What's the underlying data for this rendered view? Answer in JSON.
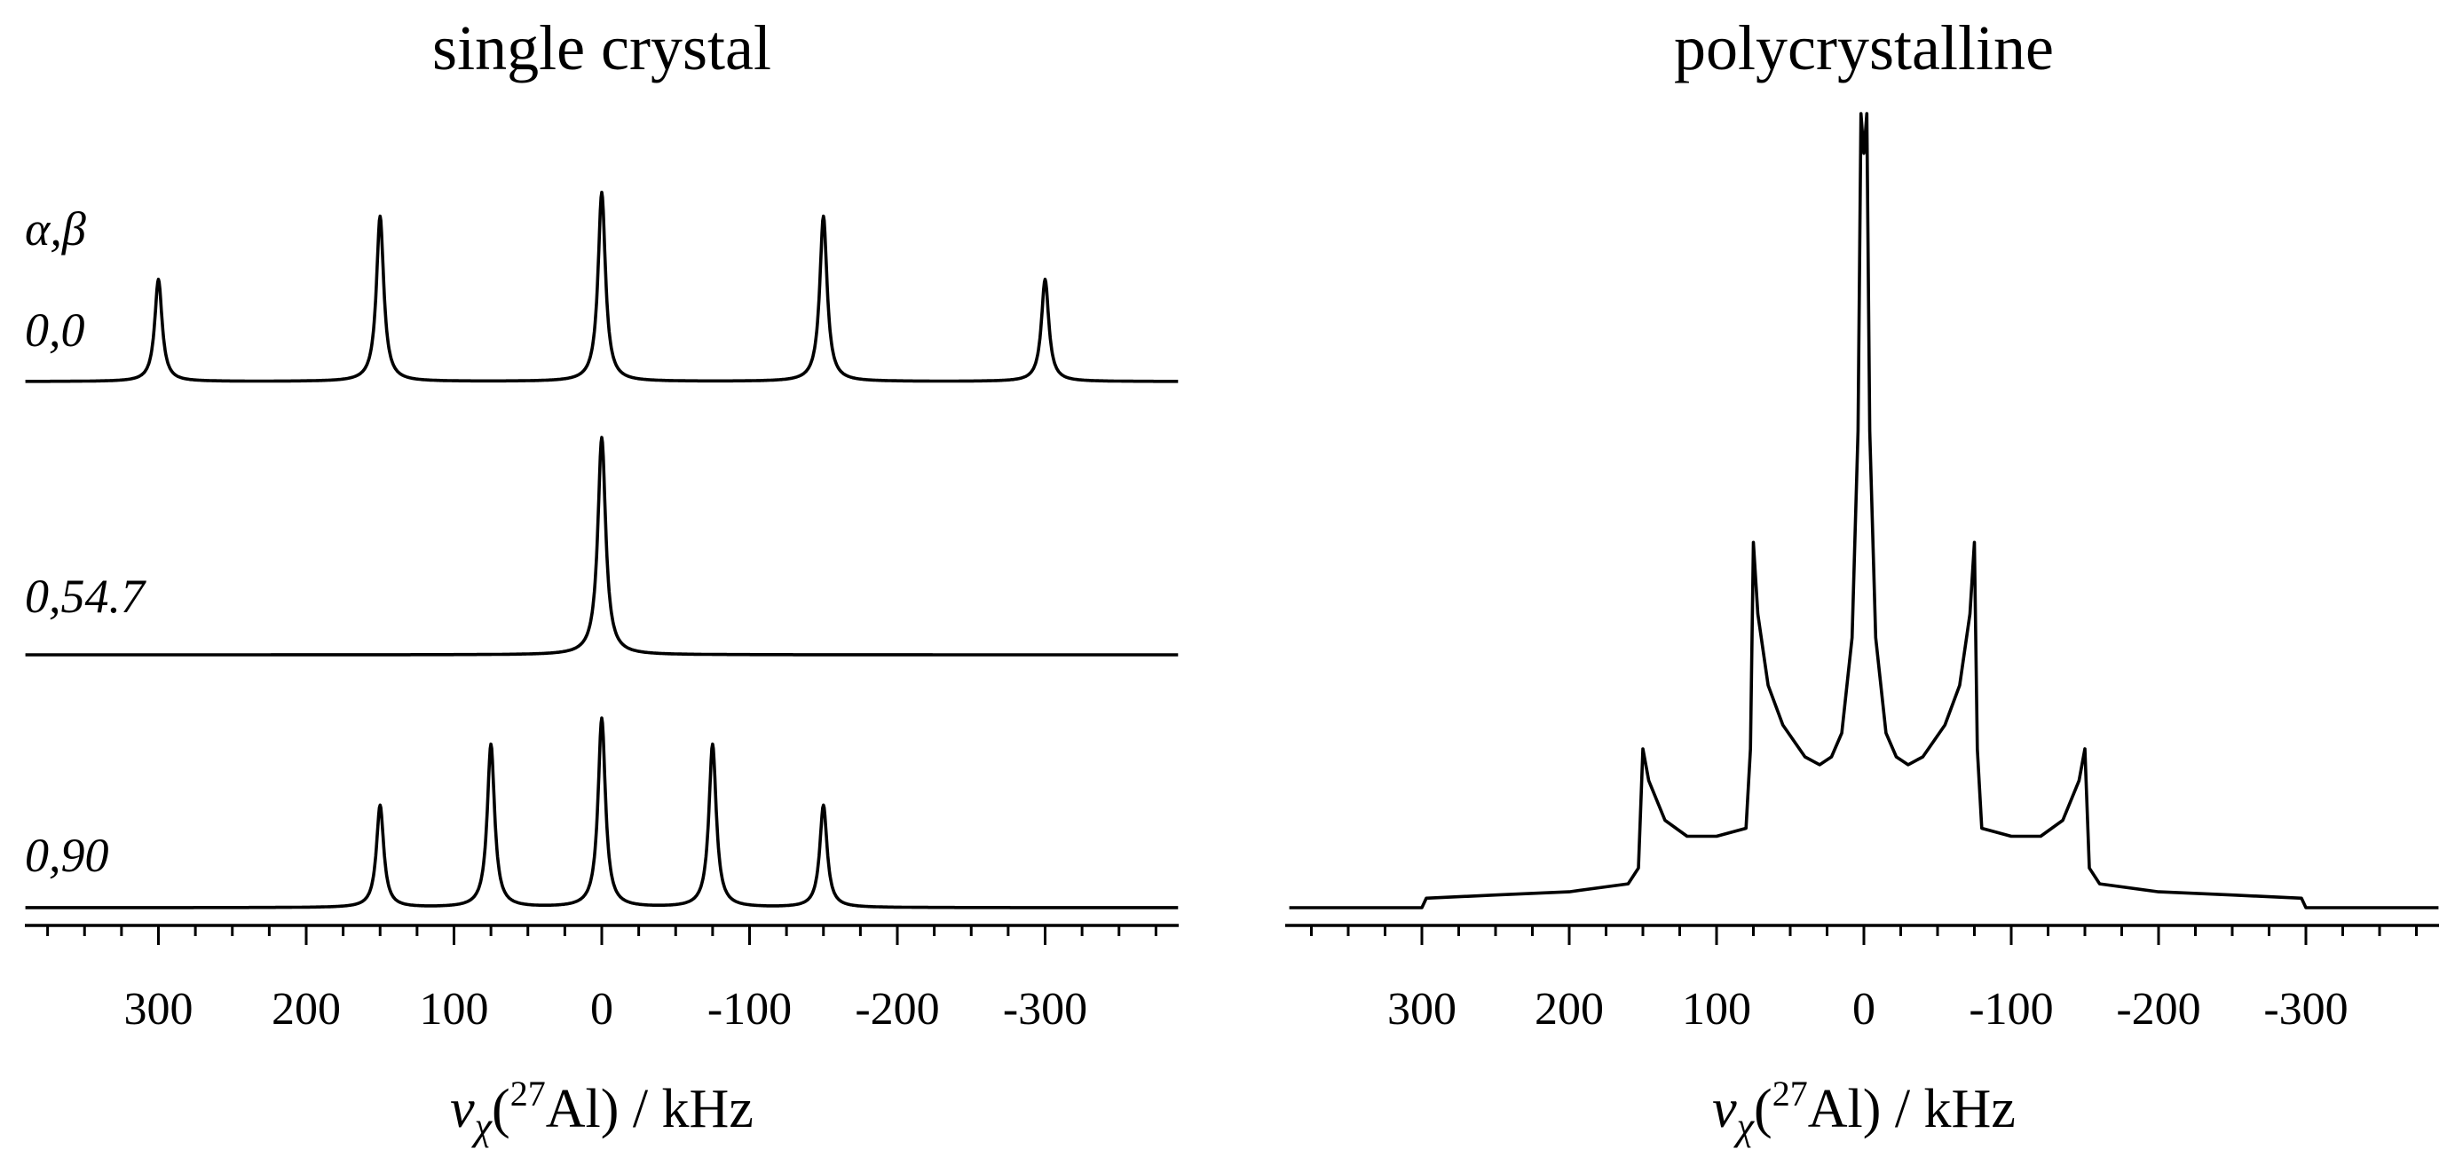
{
  "chart_data": [
    {
      "type": "line",
      "title": "single crystal",
      "xlabel": {
        "nu": "ν",
        "sub": "χ",
        "open": "(",
        "sup": "27",
        "rest": "Al) / kHz"
      },
      "xlim": [
        390,
        -390
      ],
      "x_reversed": true,
      "xticks": [
        300,
        200,
        100,
        0,
        -100,
        -200,
        -300
      ],
      "xtick_labels": [
        "300",
        "200",
        "100",
        "0",
        "-100",
        "-200",
        "-300"
      ],
      "legend_header": "α,β",
      "series": [
        {
          "name": "0,0",
          "peaks": [
            {
              "x": 300,
              "height": 0.47
            },
            {
              "x": 150,
              "height": 0.76
            },
            {
              "x": 0,
              "height": 0.87
            },
            {
              "x": -150,
              "height": 0.76
            },
            {
              "x": -300,
              "height": 0.47
            }
          ]
        },
        {
          "name": "0,54.7",
          "peaks": [
            {
              "x": 0,
              "height": 1.0
            }
          ]
        },
        {
          "name": "0,90",
          "peaks": [
            {
              "x": 150,
              "height": 0.47
            },
            {
              "x": 75,
              "height": 0.75
            },
            {
              "x": 0,
              "height": 0.87
            },
            {
              "x": -75,
              "height": 0.75
            },
            {
              "x": -150,
              "height": 0.47
            }
          ]
        }
      ]
    },
    {
      "type": "line",
      "title": "polycrystalline",
      "xlabel": {
        "nu": "ν",
        "sub": "χ",
        "open": "(",
        "sup": "27",
        "rest": "Al) / kHz"
      },
      "xlim": [
        390,
        -390
      ],
      "x_reversed": true,
      "xticks": [
        300,
        200,
        100,
        0,
        -100,
        -200,
        -300
      ],
      "xtick_labels": [
        "300",
        "200",
        "100",
        "0",
        "-100",
        "-200",
        "-300"
      ],
      "series": [
        {
          "shape": "powder pattern",
          "points": [
            [
              390,
              0.0
            ],
            [
              300,
              0.0
            ],
            [
              297,
              0.012
            ],
            [
              250,
              0.016
            ],
            [
              200,
              0.02
            ],
            [
              160,
              0.03
            ],
            [
              153,
              0.05
            ],
            [
              150,
              0.2
            ],
            [
              146,
              0.16
            ],
            [
              135,
              0.11
            ],
            [
              120,
              0.09
            ],
            [
              100,
              0.09
            ],
            [
              80,
              0.1
            ],
            [
              77,
              0.2
            ],
            [
              75,
              0.46
            ],
            [
              72,
              0.37
            ],
            [
              65,
              0.28
            ],
            [
              55,
              0.23
            ],
            [
              40,
              0.19
            ],
            [
              30,
              0.18
            ],
            [
              22,
              0.19
            ],
            [
              15,
              0.22
            ],
            [
              8,
              0.34
            ],
            [
              4,
              0.6
            ],
            [
              2,
              1.0
            ],
            [
              0,
              0.95
            ],
            [
              -2,
              1.0
            ],
            [
              -4,
              0.6
            ],
            [
              -8,
              0.34
            ],
            [
              -15,
              0.22
            ],
            [
              -22,
              0.19
            ],
            [
              -30,
              0.18
            ],
            [
              -40,
              0.19
            ],
            [
              -55,
              0.23
            ],
            [
              -65,
              0.28
            ],
            [
              -72,
              0.37
            ],
            [
              -75,
              0.46
            ],
            [
              -77,
              0.2
            ],
            [
              -80,
              0.1
            ],
            [
              -100,
              0.09
            ],
            [
              -120,
              0.09
            ],
            [
              -135,
              0.11
            ],
            [
              -146,
              0.16
            ],
            [
              -150,
              0.2
            ],
            [
              -153,
              0.05
            ],
            [
              -160,
              0.03
            ],
            [
              -200,
              0.02
            ],
            [
              -250,
              0.016
            ],
            [
              -297,
              0.012
            ],
            [
              -300,
              0.0
            ],
            [
              -390,
              0.0
            ]
          ]
        }
      ]
    }
  ]
}
